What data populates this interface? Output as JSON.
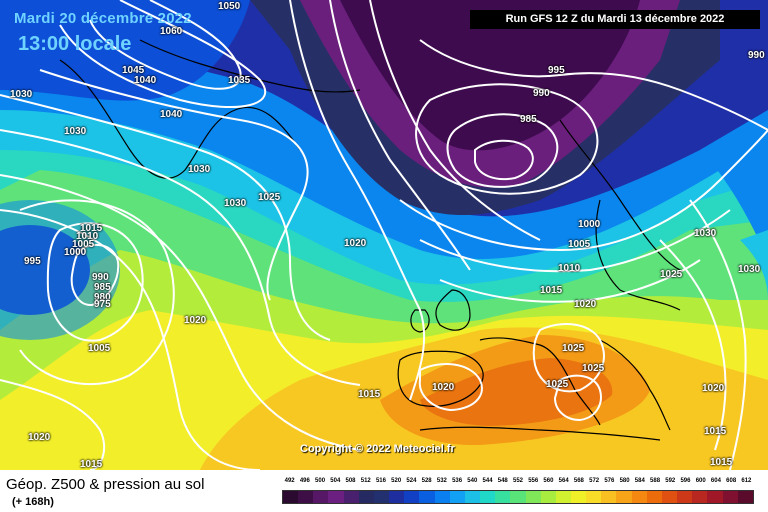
{
  "header": {
    "date_label": "Mardi 20 décembre 2022",
    "time_label": "13:00 locale",
    "run_label": "Run GFS 12 Z du Mardi 13 décembre 2022"
  },
  "copyright": "Copyright © 2022 Meteociel.fr",
  "footer": {
    "title": "Géop. Z500 & pression au sol",
    "lead_time": "(+ 168h)"
  },
  "legend": {
    "ticks": [
      "492",
      "496",
      "500",
      "504",
      "508",
      "512",
      "516",
      "520",
      "524",
      "528",
      "532",
      "536",
      "540",
      "544",
      "548",
      "552",
      "556",
      "560",
      "564",
      "568",
      "572",
      "576",
      "580",
      "584",
      "588",
      "592",
      "596",
      "600",
      "604",
      "608",
      "612"
    ],
    "colors": [
      "#2a0a2e",
      "#3e0f47",
      "#551766",
      "#6b1f80",
      "#48206e",
      "#262a63",
      "#23306f",
      "#1f2e9e",
      "#1240c4",
      "#0a5fe0",
      "#0a7ff0",
      "#12a0f5",
      "#1cc0e6",
      "#20d8c8",
      "#38e0a0",
      "#58e478",
      "#80e858",
      "#a8ec40",
      "#d0f030",
      "#f0f028",
      "#f8dc28",
      "#f8c020",
      "#f8a418",
      "#f48810",
      "#ec6c0c",
      "#e05010",
      "#cc3818",
      "#b82820",
      "#a01828",
      "#801030",
      "#5a0a2a"
    ]
  },
  "map": {
    "colors": {
      "deep_purple": "#3e0b4e",
      "purple": "#6a1f7c",
      "navy": "#263066",
      "blue": "#1f2fa8",
      "royal": "#0d4fd6",
      "azure": "#0a86ee",
      "cyan": "#1cc3e6",
      "teal": "#2ad7c0",
      "green": "#5fe27a",
      "lime": "#b4ec3c",
      "yellow": "#f2ee2a",
      "gold": "#f8c822",
      "orange": "#f39a16",
      "dark_orange": "#ea7410",
      "isobar": "#ffffff",
      "coast": "#000000"
    },
    "isobar_labels": [
      "1060",
      "1050",
      "1045",
      "1040",
      "1040",
      "1030",
      "1030",
      "1035",
      "1030",
      "1025",
      "1030",
      "1020",
      "1015",
      "1010",
      "1005",
      "1000",
      "995",
      "990",
      "985",
      "980",
      "975",
      "995",
      "990",
      "985",
      "1000",
      "1005",
      "1010",
      "1015",
      "1020",
      "1025",
      "1025",
      "1025",
      "1020",
      "1015",
      "1005",
      "1020",
      "1020",
      "1015",
      "1030",
      "1025",
      "1020",
      "1015",
      "1015",
      "990",
      "1030"
    ]
  }
}
